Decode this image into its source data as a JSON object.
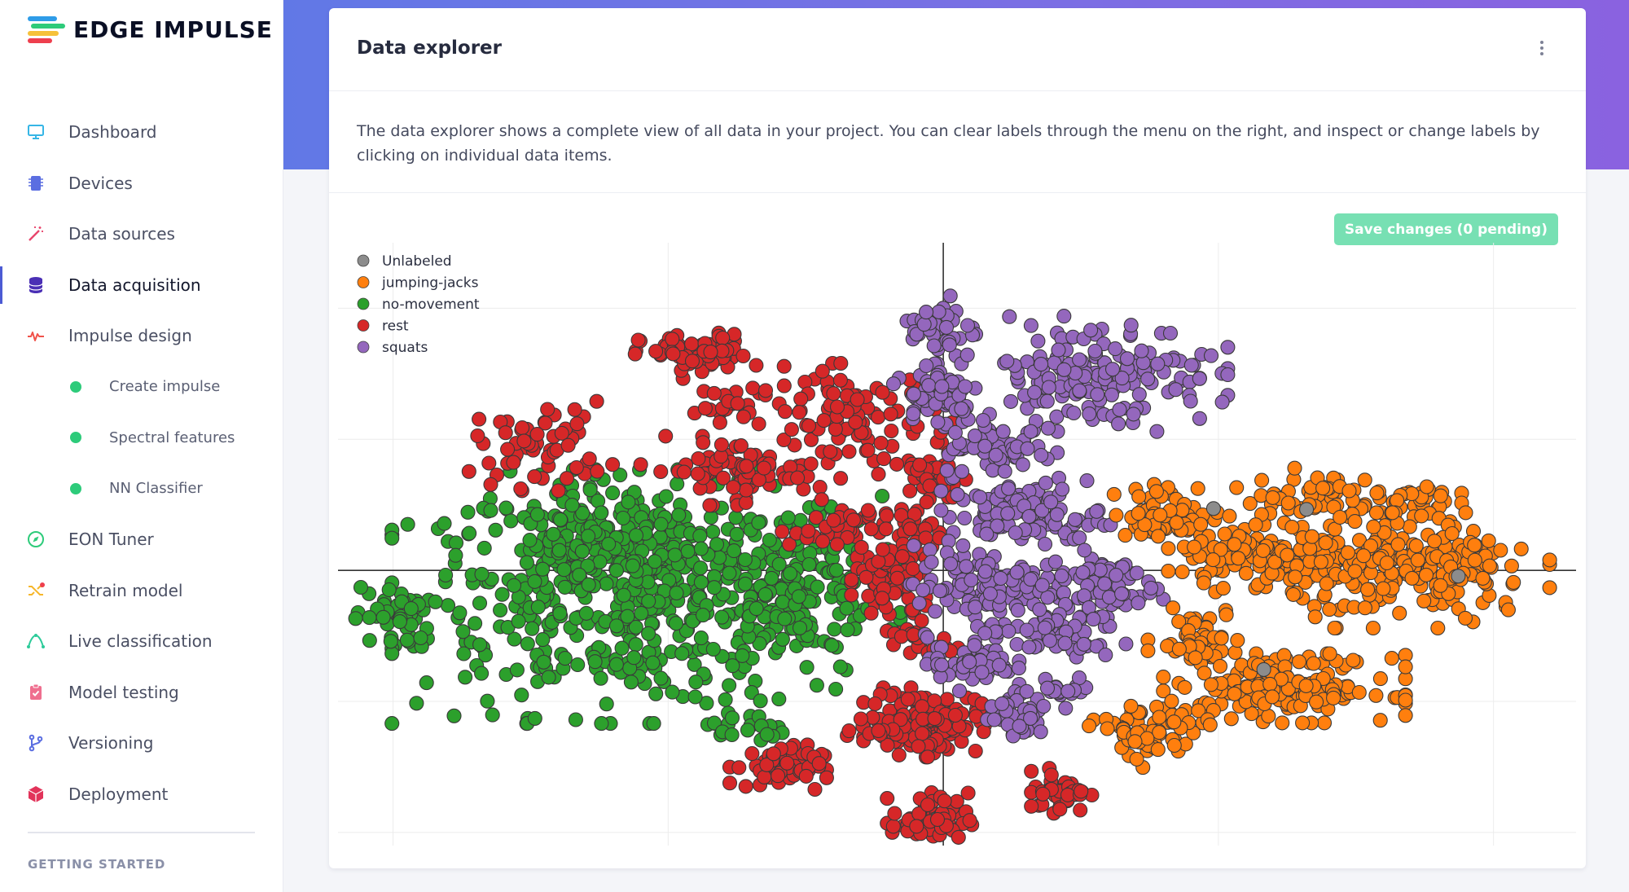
{
  "brand": {
    "name": "EDGE IMPULSE",
    "stripe_colors": [
      "#2e9ce8",
      "#2dcb7a",
      "#f6c13a",
      "#ee3f4e"
    ]
  },
  "sidebar": {
    "items": [
      {
        "label": "Dashboard",
        "icon": "monitor-icon",
        "color": "#36b6e6"
      },
      {
        "label": "Devices",
        "icon": "chip-icon",
        "color": "#5b6ee1"
      },
      {
        "label": "Data sources",
        "icon": "magic-wand-icon",
        "color": "#e8456c"
      },
      {
        "label": "Data acquisition",
        "icon": "database-icon",
        "color": "#4a2fb5",
        "active": true
      },
      {
        "label": "Impulse design",
        "icon": "pulse-icon",
        "color": "#f0524a"
      },
      {
        "label": "Create impulse",
        "sub": true
      },
      {
        "label": "Spectral features",
        "sub": true
      },
      {
        "label": "NN Classifier",
        "sub": true
      },
      {
        "label": "EON Tuner",
        "icon": "compass-icon",
        "color": "#2dcb7a"
      },
      {
        "label": "Retrain model",
        "icon": "shuffle-icon",
        "color": "#f6b62a"
      },
      {
        "label": "Live classification",
        "icon": "curve-icon",
        "color": "#2dcb9a"
      },
      {
        "label": "Model testing",
        "icon": "clipboard-check-icon",
        "color": "#ef6f8f"
      },
      {
        "label": "Versioning",
        "icon": "branch-icon",
        "color": "#5b6ee1"
      },
      {
        "label": "Deployment",
        "icon": "box-icon",
        "color": "#e2335a"
      }
    ],
    "section_title": "GETTING STARTED"
  },
  "card": {
    "title": "Data explorer",
    "description": "The data explorer shows a complete view of all data in your project. You can clear labels through the menu on the right, and inspect or change labels by clicking on individual data items.",
    "save_label": "Save changes (0 pending)"
  },
  "chart_data": {
    "type": "scatter",
    "title": "",
    "xlabel": "",
    "ylabel": "",
    "xlim": [
      -2.2,
      2.3
    ],
    "ylim": [
      -1.05,
      1.25
    ],
    "grid": true,
    "legend_placement": "top-left",
    "series": [
      {
        "name": "Unlabeled",
        "color": "#8c8c8c",
        "clusters": [
          {
            "cx": 1.32,
            "cy": 0.24,
            "sx": 0.01,
            "sy": 0.01,
            "n": 1
          },
          {
            "cx": 1.17,
            "cy": -0.36,
            "sx": 0.01,
            "sy": 0.01,
            "n": 1
          },
          {
            "cx": 0.97,
            "cy": 0.24,
            "sx": 0.01,
            "sy": 0.01,
            "n": 1
          },
          {
            "cx": 1.85,
            "cy": 0.0,
            "sx": 0.01,
            "sy": 0.01,
            "n": 1
          }
        ]
      },
      {
        "name": "jumping-jacks",
        "color": "#ff7f0e",
        "clusters": [
          {
            "cx": 0.82,
            "cy": 0.22,
            "sx": 0.1,
            "sy": 0.05,
            "n": 60
          },
          {
            "cx": 1.33,
            "cy": 0.28,
            "sx": 0.12,
            "sy": 0.05,
            "n": 60
          },
          {
            "cx": 1.73,
            "cy": 0.26,
            "sx": 0.07,
            "sy": 0.04,
            "n": 30
          },
          {
            "cx": 1.17,
            "cy": 0.05,
            "sx": 0.16,
            "sy": 0.06,
            "n": 140
          },
          {
            "cx": 1.72,
            "cy": 0.0,
            "sx": 0.22,
            "sy": 0.1,
            "n": 220
          },
          {
            "cx": 0.92,
            "cy": -0.25,
            "sx": 0.08,
            "sy": 0.05,
            "n": 50
          },
          {
            "cx": 1.24,
            "cy": -0.45,
            "sx": 0.2,
            "sy": 0.06,
            "n": 160
          },
          {
            "cx": 0.75,
            "cy": -0.62,
            "sx": 0.1,
            "sy": 0.06,
            "n": 70
          }
        ]
      },
      {
        "name": "no-movement",
        "color": "#2ca02c",
        "clusters": [
          {
            "cx": -1.08,
            "cy": -0.1,
            "sx": 0.42,
            "sy": 0.22,
            "n": 520
          },
          {
            "cx": -1.25,
            "cy": 0.1,
            "sx": 0.25,
            "sy": 0.12,
            "n": 140
          },
          {
            "cx": -0.55,
            "cy": -0.08,
            "sx": 0.15,
            "sy": 0.15,
            "n": 110
          },
          {
            "cx": -2.0,
            "cy": -0.18,
            "sx": 0.07,
            "sy": 0.06,
            "n": 40
          },
          {
            "cx": -0.72,
            "cy": -0.6,
            "sx": 0.07,
            "sy": 0.03,
            "n": 18
          }
        ]
      },
      {
        "name": "rest",
        "color": "#d62728",
        "clusters": [
          {
            "cx": -0.9,
            "cy": 0.82,
            "sx": 0.1,
            "sy": 0.04,
            "n": 70
          },
          {
            "cx": -1.46,
            "cy": 0.48,
            "sx": 0.12,
            "sy": 0.08,
            "n": 60
          },
          {
            "cx": -0.77,
            "cy": 0.38,
            "sx": 0.15,
            "sy": 0.06,
            "n": 70
          },
          {
            "cx": -0.75,
            "cy": 0.62,
            "sx": 0.07,
            "sy": 0.04,
            "n": 20
          },
          {
            "cx": -0.33,
            "cy": 0.57,
            "sx": 0.18,
            "sy": 0.1,
            "n": 100
          },
          {
            "cx": -0.3,
            "cy": 0.16,
            "sx": 0.13,
            "sy": 0.05,
            "n": 60
          },
          {
            "cx": -0.05,
            "cy": 0.36,
            "sx": 0.06,
            "sy": 0.04,
            "n": 30
          },
          {
            "cx": -0.18,
            "cy": -0.04,
            "sx": 0.07,
            "sy": 0.09,
            "n": 80
          },
          {
            "cx": -0.1,
            "cy": -0.28,
            "sx": 0.07,
            "sy": 0.04,
            "n": 20
          },
          {
            "cx": -0.07,
            "cy": -0.58,
            "sx": 0.1,
            "sy": 0.06,
            "n": 140
          },
          {
            "cx": -0.6,
            "cy": -0.75,
            "sx": 0.08,
            "sy": 0.04,
            "n": 60
          },
          {
            "cx": -0.05,
            "cy": -0.95,
            "sx": 0.07,
            "sy": 0.05,
            "n": 60
          },
          {
            "cx": 0.43,
            "cy": -0.84,
            "sx": 0.05,
            "sy": 0.04,
            "n": 40
          },
          {
            "cx": 0.0,
            "cy": 0.3,
            "sx": 0.03,
            "sy": 0.03,
            "n": 10
          },
          {
            "cx": -0.27,
            "cy": -0.6,
            "sx": 0.05,
            "sy": 0.03,
            "n": 10
          }
        ]
      },
      {
        "name": "squats",
        "color": "#9467bd",
        "clusters": [
          {
            "cx": 0.0,
            "cy": 0.92,
            "sx": 0.06,
            "sy": 0.06,
            "n": 40
          },
          {
            "cx": -0.02,
            "cy": 0.68,
            "sx": 0.08,
            "sy": 0.06,
            "n": 60
          },
          {
            "cx": 0.2,
            "cy": 0.46,
            "sx": 0.1,
            "sy": 0.05,
            "n": 60
          },
          {
            "cx": 0.55,
            "cy": 0.75,
            "sx": 0.22,
            "sy": 0.1,
            "n": 170
          },
          {
            "cx": 0.3,
            "cy": 0.21,
            "sx": 0.14,
            "sy": 0.06,
            "n": 100
          },
          {
            "cx": 0.15,
            "cy": -0.06,
            "sx": 0.13,
            "sy": 0.07,
            "n": 110
          },
          {
            "cx": 0.58,
            "cy": -0.05,
            "sx": 0.1,
            "sy": 0.06,
            "n": 70
          },
          {
            "cx": 0.4,
            "cy": -0.24,
            "sx": 0.12,
            "sy": 0.05,
            "n": 60
          },
          {
            "cx": 0.1,
            "cy": -0.35,
            "sx": 0.08,
            "sy": 0.05,
            "n": 60
          },
          {
            "cx": 0.27,
            "cy": -0.55,
            "sx": 0.05,
            "sy": 0.04,
            "n": 40
          },
          {
            "cx": 0.44,
            "cy": -0.46,
            "sx": 0.05,
            "sy": 0.03,
            "n": 20
          }
        ]
      }
    ]
  }
}
